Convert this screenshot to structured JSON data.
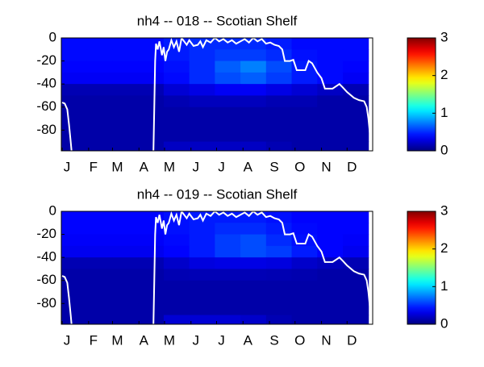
{
  "chart_data": [
    {
      "type": "heatmap",
      "title": "nh4 -- 018 -- Scotian Shelf",
      "xlim": [
        0,
        365
      ],
      "xticks": [
        {
          "value": 1,
          "label": "J"
        },
        {
          "value": 32,
          "label": "F"
        },
        {
          "value": 60,
          "label": "M"
        },
        {
          "value": 91,
          "label": "A"
        },
        {
          "value": 121,
          "label": "M"
        },
        {
          "value": 152,
          "label": "J"
        },
        {
          "value": 182,
          "label": "J"
        },
        {
          "value": 213,
          "label": "A"
        },
        {
          "value": 244,
          "label": "S"
        },
        {
          "value": 274,
          "label": "O"
        },
        {
          "value": 305,
          "label": "N"
        },
        {
          "value": 335,
          "label": "D"
        }
      ],
      "ylim": [
        -98,
        0
      ],
      "yticks": [
        0,
        -20,
        -40,
        -60,
        -80
      ],
      "clim": [
        0,
        3
      ],
      "cticks": [
        0,
        1,
        2,
        3
      ],
      "colormap": "jet",
      "x": [
        15,
        45,
        75,
        105,
        135,
        165,
        195,
        225,
        255,
        285,
        315,
        345
      ],
      "y": [
        -5,
        -15,
        -25,
        -35,
        -45,
        -55,
        -65,
        -75,
        -85,
        -95
      ],
      "z": [
        [
          0.4,
          0.4,
          0.4,
          0.4,
          0.45,
          0.5,
          0.5,
          0.5,
          0.45,
          0.4,
          0.4,
          0.4
        ],
        [
          0.4,
          0.4,
          0.4,
          0.4,
          0.45,
          0.5,
          0.55,
          0.55,
          0.5,
          0.42,
          0.4,
          0.4
        ],
        [
          0.38,
          0.38,
          0.38,
          0.38,
          0.42,
          0.5,
          0.65,
          0.75,
          0.6,
          0.45,
          0.4,
          0.38
        ],
        [
          0.35,
          0.35,
          0.35,
          0.35,
          0.4,
          0.5,
          0.6,
          0.65,
          0.55,
          0.45,
          0.4,
          0.35
        ],
        [
          0.15,
          0.15,
          0.15,
          0.15,
          0.25,
          0.3,
          0.35,
          0.35,
          0.3,
          0.25,
          0.2,
          0.15
        ],
        [
          0.12,
          0.12,
          0.12,
          0.12,
          0.15,
          0.18,
          0.18,
          0.18,
          0.15,
          0.15,
          0.12,
          0.12
        ],
        [
          0.12,
          0.12,
          0.12,
          0.12,
          0.12,
          0.12,
          0.12,
          0.12,
          0.12,
          0.12,
          0.12,
          0.12
        ],
        [
          0.12,
          0.12,
          0.12,
          0.12,
          0.12,
          0.12,
          0.12,
          0.12,
          0.12,
          0.12,
          0.12,
          0.12
        ],
        [
          0.12,
          0.12,
          0.12,
          0.12,
          0.12,
          0.12,
          0.12,
          0.12,
          0.12,
          0.12,
          0.12,
          0.12
        ],
        [
          0.12,
          0.12,
          0.12,
          0.12,
          0.2,
          0.2,
          0.2,
          0.2,
          0.15,
          0.12,
          0.12,
          0.12
        ]
      ],
      "line": {
        "color": "#ffffff",
        "x": [
          1,
          4,
          7,
          9,
          11,
          12,
          null,
          108,
          109,
          110,
          111,
          113,
          115,
          118,
          120,
          122,
          124,
          126,
          129,
          132,
          135,
          138,
          141,
          144,
          147,
          150,
          155,
          160,
          163,
          166,
          170,
          175,
          180,
          185,
          190,
          195,
          200,
          205,
          210,
          215,
          220,
          225,
          230,
          235,
          240,
          245,
          250,
          255,
          259,
          262,
          268,
          272,
          276,
          286,
          290,
          294,
          300,
          305,
          309,
          318,
          326,
          330,
          335,
          343,
          349,
          355,
          358,
          360,
          362,
          363
        ],
        "values": [
          -56,
          -57,
          -62,
          -75,
          -90,
          -98,
          null,
          -98,
          -60,
          -20,
          -5,
          -10,
          -3,
          -15,
          -8,
          -20,
          -12,
          -10,
          -2,
          -8,
          -3,
          -12,
          0,
          -3,
          -6,
          -2,
          -7,
          -6,
          -3,
          -8,
          -2,
          -4,
          0,
          -3,
          -1,
          -4,
          -2,
          -5,
          -3,
          -1,
          -4,
          0,
          -3,
          -1,
          -5,
          -4,
          -6,
          -7,
          -10,
          -20,
          -20,
          -19,
          -28,
          -28,
          -20,
          -22,
          -30,
          -35,
          -44,
          -44,
          -40,
          -43,
          -47,
          -52,
          -54,
          -55,
          -60,
          -70,
          -85,
          -98
        ]
      }
    },
    {
      "type": "heatmap",
      "title": "nh4 -- 019 -- Scotian Shelf",
      "xlim": [
        0,
        365
      ],
      "xticks": [
        {
          "value": 1,
          "label": "J"
        },
        {
          "value": 32,
          "label": "F"
        },
        {
          "value": 60,
          "label": "M"
        },
        {
          "value": 91,
          "label": "A"
        },
        {
          "value": 121,
          "label": "M"
        },
        {
          "value": 152,
          "label": "J"
        },
        {
          "value": 182,
          "label": "J"
        },
        {
          "value": 213,
          "label": "A"
        },
        {
          "value": 244,
          "label": "S"
        },
        {
          "value": 274,
          "label": "O"
        },
        {
          "value": 305,
          "label": "N"
        },
        {
          "value": 335,
          "label": "D"
        }
      ],
      "ylim": [
        -98,
        0
      ],
      "yticks": [
        0,
        -20,
        -40,
        -60,
        -80
      ],
      "clim": [
        0,
        3
      ],
      "cticks": [
        0,
        1,
        2,
        3
      ],
      "colormap": "jet",
      "x": [
        15,
        45,
        75,
        105,
        135,
        165,
        195,
        225,
        255,
        285,
        315,
        345
      ],
      "y": [
        -5,
        -15,
        -25,
        -35,
        -45,
        -55,
        -65,
        -75,
        -85,
        -95
      ],
      "z": [
        [
          0.38,
          0.38,
          0.38,
          0.38,
          0.42,
          0.45,
          0.45,
          0.45,
          0.42,
          0.38,
          0.38,
          0.38
        ],
        [
          0.38,
          0.38,
          0.38,
          0.38,
          0.42,
          0.45,
          0.5,
          0.5,
          0.45,
          0.4,
          0.38,
          0.38
        ],
        [
          0.36,
          0.36,
          0.36,
          0.36,
          0.4,
          0.45,
          0.55,
          0.6,
          0.5,
          0.42,
          0.38,
          0.36
        ],
        [
          0.33,
          0.33,
          0.33,
          0.33,
          0.38,
          0.45,
          0.55,
          0.6,
          0.55,
          0.45,
          0.38,
          0.33
        ],
        [
          0.15,
          0.15,
          0.15,
          0.15,
          0.22,
          0.28,
          0.3,
          0.3,
          0.28,
          0.22,
          0.18,
          0.15
        ],
        [
          0.12,
          0.12,
          0.12,
          0.12,
          0.15,
          0.16,
          0.16,
          0.16,
          0.15,
          0.14,
          0.12,
          0.12
        ],
        [
          0.12,
          0.12,
          0.12,
          0.12,
          0.12,
          0.12,
          0.12,
          0.12,
          0.12,
          0.12,
          0.12,
          0.12
        ],
        [
          0.12,
          0.12,
          0.12,
          0.12,
          0.12,
          0.12,
          0.12,
          0.12,
          0.12,
          0.12,
          0.12,
          0.12
        ],
        [
          0.12,
          0.12,
          0.12,
          0.12,
          0.12,
          0.12,
          0.12,
          0.12,
          0.12,
          0.12,
          0.12,
          0.12
        ],
        [
          0.12,
          0.12,
          0.12,
          0.12,
          0.25,
          0.25,
          0.25,
          0.22,
          0.15,
          0.12,
          0.12,
          0.12
        ]
      ],
      "line": {
        "color": "#ffffff",
        "x": [
          1,
          4,
          7,
          9,
          11,
          12,
          null,
          108,
          109,
          110,
          111,
          113,
          115,
          118,
          120,
          122,
          124,
          126,
          129,
          132,
          135,
          138,
          141,
          144,
          147,
          150,
          155,
          160,
          163,
          166,
          170,
          175,
          180,
          185,
          190,
          195,
          200,
          205,
          210,
          215,
          220,
          225,
          230,
          235,
          240,
          245,
          250,
          255,
          259,
          262,
          268,
          272,
          276,
          286,
          290,
          294,
          300,
          305,
          309,
          318,
          326,
          330,
          335,
          343,
          349,
          355,
          358,
          360,
          362,
          363
        ],
        "values": [
          -56,
          -57,
          -62,
          -75,
          -90,
          -98,
          null,
          -98,
          -60,
          -20,
          -5,
          -10,
          -3,
          -15,
          -8,
          -20,
          -12,
          -10,
          -2,
          -8,
          -3,
          -12,
          0,
          -3,
          -6,
          -2,
          -7,
          -6,
          -3,
          -8,
          -2,
          -4,
          0,
          -3,
          -1,
          -4,
          -2,
          -5,
          -3,
          -1,
          -4,
          0,
          -3,
          -1,
          -5,
          -4,
          -6,
          -7,
          -10,
          -20,
          -20,
          -19,
          -28,
          -28,
          -20,
          -22,
          -30,
          -35,
          -44,
          -44,
          -40,
          -43,
          -47,
          -52,
          -54,
          -55,
          -60,
          -70,
          -85,
          -98
        ]
      }
    }
  ]
}
